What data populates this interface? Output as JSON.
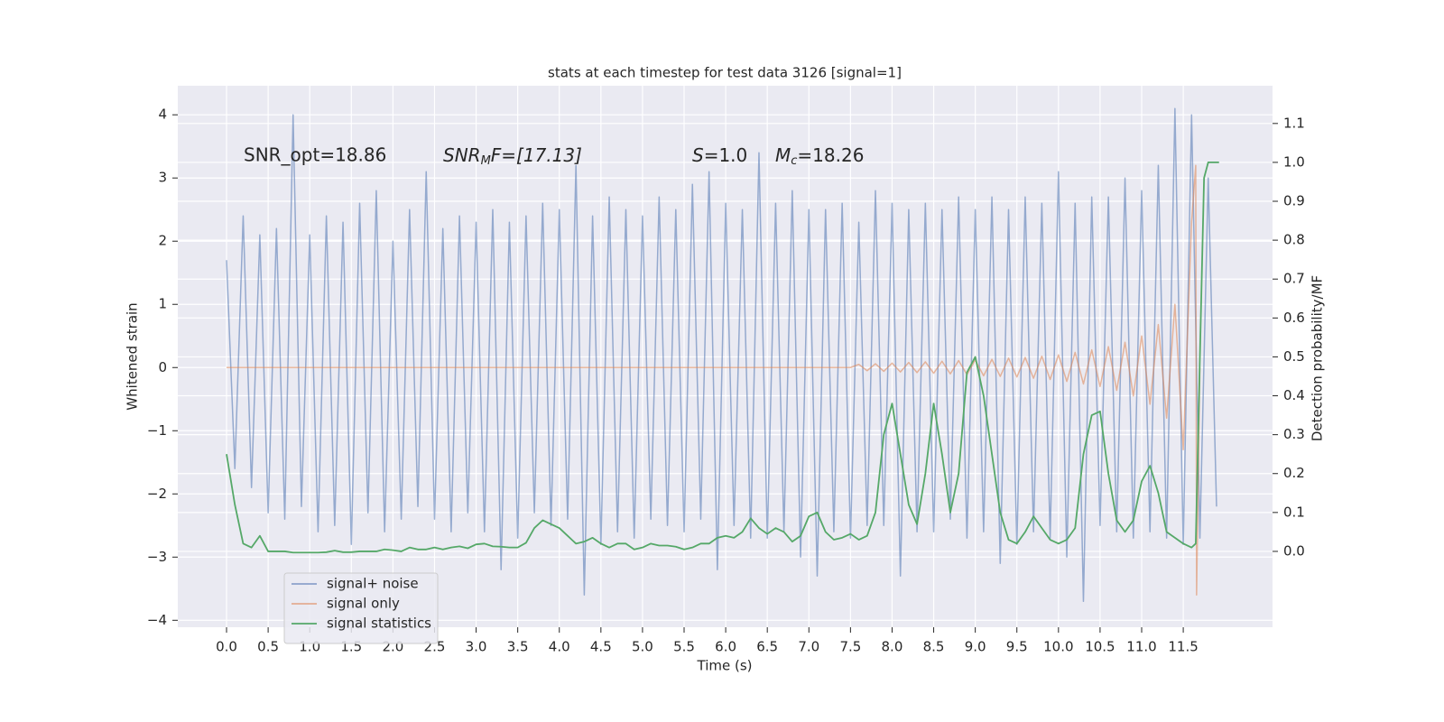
{
  "chart_data": {
    "type": "line",
    "title": "stats at each timestep for test data 3126 [signal=1]",
    "xlabel": "Time (s)",
    "ylabel": "Whitened strain",
    "y2label": "Detection probability/MF",
    "annotations": [
      [
        "SNR_opt=18.86"
      ],
      [
        "SNR",
        "M",
        "F=[17.13]"
      ],
      [
        "S",
        "=1.0"
      ],
      [
        "M",
        "c",
        "=18.26"
      ]
    ],
    "xlim": [
      -0.586,
      12.573
    ],
    "ylim": [
      -4.11,
      4.46
    ],
    "y2lim": [
      -0.195,
      1.197
    ],
    "xticks": [
      {
        "value": 0,
        "label": "0.0"
      },
      0.5,
      {
        "value": 1,
        "label": "1.0"
      },
      1.5,
      {
        "value": 2,
        "label": "2.0"
      },
      2.5,
      {
        "value": 3,
        "label": "3.0"
      },
      3.5,
      {
        "value": 4,
        "label": "4.0"
      },
      4.5,
      {
        "value": 5,
        "label": "5.0"
      },
      5.5,
      {
        "value": 6,
        "label": "6.0"
      },
      6.5,
      {
        "value": 7,
        "label": "7.0"
      },
      7.5,
      {
        "value": 8,
        "label": "8.0"
      },
      8.5,
      {
        "value": 9,
        "label": "9.0"
      },
      9.5,
      {
        "value": 10,
        "label": "10.0"
      },
      10.5,
      {
        "value": 11,
        "label": "11.0"
      },
      11.5
    ],
    "yticks": [
      {
        "value": -4,
        "label": "−4"
      },
      {
        "value": -3,
        "label": "−3"
      },
      {
        "value": -2,
        "label": "−2"
      },
      {
        "value": -1,
        "label": "−1"
      },
      0,
      1,
      2,
      3,
      4
    ],
    "y2ticks": [
      {
        "value": 0,
        "label": "0.0"
      },
      0.1,
      0.2,
      0.3,
      0.4,
      0.5,
      0.6,
      0.7,
      0.8,
      0.9,
      {
        "value": 1,
        "label": "1.0"
      },
      1.1
    ],
    "grid": true,
    "legend": "lower left",
    "series": [
      {
        "name": "signal+ noise",
        "color": "#4c72b0",
        "x": [
          0,
          0.1,
          0.2,
          0.3,
          0.4,
          0.5,
          0.6,
          0.7,
          0.8,
          0.9,
          1,
          1.1,
          1.2,
          1.3,
          1.4,
          1.5,
          1.6,
          1.7,
          1.8,
          1.9,
          2,
          2.1,
          2.2,
          2.3,
          2.4,
          2.5,
          2.6,
          2.7,
          2.8,
          2.9,
          3,
          3.1,
          3.2,
          3.3,
          3.4,
          3.5,
          3.6,
          3.7,
          3.8,
          3.9,
          4,
          4.1,
          4.2,
          4.3,
          4.4,
          4.5,
          4.6,
          4.7,
          4.8,
          4.9,
          5,
          5.1,
          5.2,
          5.3,
          5.4,
          5.5,
          5.6,
          5.7,
          5.8,
          5.9,
          6,
          6.1,
          6.2,
          6.3,
          6.4,
          6.5,
          6.6,
          6.7,
          6.8,
          6.9,
          7,
          7.1,
          7.2,
          7.3,
          7.4,
          7.5,
          7.6,
          7.7,
          7.8,
          7.9,
          8,
          8.1,
          8.2,
          8.3,
          8.4,
          8.5,
          8.6,
          8.7,
          8.8,
          8.9,
          9,
          9.1,
          9.2,
          9.3,
          9.4,
          9.5,
          9.6,
          9.7,
          9.8,
          9.9,
          10,
          10.1,
          10.2,
          10.3,
          10.4,
          10.5,
          10.6,
          10.7,
          10.8,
          10.9,
          11,
          11.1,
          11.2,
          11.3,
          11.4,
          11.5,
          11.6,
          11.7,
          11.8,
          11.9
        ],
        "values": [
          1.7,
          -1.6,
          2.4,
          -1.9,
          2.1,
          -2.3,
          2.2,
          -2.4,
          4.0,
          -2.2,
          2.1,
          -2.6,
          2.4,
          -2.5,
          2.3,
          -2.8,
          2.6,
          -2.3,
          2.8,
          -2.6,
          2.0,
          -2.4,
          2.5,
          -2.2,
          3.1,
          -2.4,
          2.2,
          -2.6,
          2.4,
          -2.3,
          2.3,
          -2.6,
          2.5,
          -3.2,
          2.3,
          -2.7,
          2.4,
          -2.3,
          2.6,
          -2.5,
          2.5,
          -2.4,
          3.2,
          -3.6,
          2.4,
          -2.8,
          2.7,
          -2.6,
          2.5,
          -2.7,
          2.4,
          -2.4,
          2.7,
          -2.5,
          2.5,
          -2.6,
          2.9,
          -2.4,
          3.1,
          -3.2,
          2.6,
          -2.5,
          2.5,
          -2.7,
          3.4,
          -2.7,
          2.6,
          -2.6,
          2.8,
          -3.0,
          2.5,
          -3.3,
          2.5,
          -2.6,
          2.6,
          -2.7,
          2.3,
          -2.5,
          2.8,
          -2.5,
          2.6,
          -3.3,
          2.5,
          -2.6,
          2.6,
          -2.6,
          2.5,
          -2.4,
          2.7,
          -2.7,
          2.5,
          -2.6,
          2.7,
          -3.1,
          2.5,
          -2.8,
          2.7,
          -2.6,
          2.6,
          -2.7,
          3.1,
          -3.0,
          2.6,
          -3.7,
          2.7,
          -2.5,
          2.7,
          -2.6,
          3.0,
          -2.7,
          2.8,
          -2.6,
          3.2,
          -2.7,
          4.1,
          -2.8,
          4.0,
          -2.7,
          3.0,
          -2.2
        ]
      },
      {
        "name": "signal only",
        "color": "#dd8452",
        "x": [
          0,
          7.5,
          7.6,
          7.7,
          7.8,
          7.9,
          8,
          8.1,
          8.2,
          8.3,
          8.4,
          8.5,
          8.6,
          8.7,
          8.8,
          8.9,
          9,
          9.1,
          9.2,
          9.3,
          9.4,
          9.5,
          9.6,
          9.7,
          9.8,
          9.9,
          10,
          10.1,
          10.2,
          10.3,
          10.4,
          10.5,
          10.6,
          10.7,
          10.8,
          10.9,
          11,
          11.1,
          11.2,
          11.3,
          11.4,
          11.5,
          11.6,
          11.65,
          11.66,
          11.7
        ],
        "values": [
          0,
          0,
          0.05,
          -0.05,
          0.06,
          -0.06,
          0.07,
          -0.07,
          0.08,
          -0.08,
          0.09,
          -0.09,
          0.1,
          -0.1,
          0.11,
          -0.11,
          0.12,
          -0.13,
          0.13,
          -0.14,
          0.15,
          -0.15,
          0.16,
          -0.17,
          0.18,
          -0.19,
          0.2,
          -0.22,
          0.24,
          -0.26,
          0.28,
          -0.3,
          0.33,
          -0.36,
          0.4,
          -0.45,
          0.5,
          -0.58,
          0.68,
          -0.8,
          1.0,
          -1.3,
          2.3,
          3.2,
          -3.6,
          0
        ]
      },
      {
        "name": "signal statistics",
        "color": "#55a868",
        "axis": "y2",
        "x": [
          0,
          0.1,
          0.2,
          0.3,
          0.4,
          0.5,
          0.6,
          0.7,
          0.8,
          0.9,
          1,
          1.1,
          1.2,
          1.3,
          1.4,
          1.5,
          1.6,
          1.7,
          1.8,
          1.9,
          2,
          2.1,
          2.2,
          2.3,
          2.4,
          2.5,
          2.6,
          2.7,
          2.8,
          2.9,
          3,
          3.1,
          3.2,
          3.3,
          3.4,
          3.5,
          3.6,
          3.7,
          3.8,
          3.9,
          4,
          4.1,
          4.2,
          4.3,
          4.4,
          4.5,
          4.6,
          4.7,
          4.8,
          4.9,
          5,
          5.1,
          5.2,
          5.3,
          5.4,
          5.5,
          5.6,
          5.7,
          5.8,
          5.9,
          6,
          6.1,
          6.2,
          6.3,
          6.4,
          6.5,
          6.6,
          6.7,
          6.8,
          6.9,
          7,
          7.1,
          7.2,
          7.3,
          7.4,
          7.5,
          7.6,
          7.7,
          7.8,
          7.9,
          8,
          8.1,
          8.2,
          8.3,
          8.4,
          8.5,
          8.6,
          8.7,
          8.8,
          8.9,
          9,
          9.1,
          9.2,
          9.3,
          9.4,
          9.5,
          9.6,
          9.7,
          9.8,
          9.9,
          10,
          10.1,
          10.2,
          10.3,
          10.4,
          10.5,
          10.6,
          10.7,
          10.8,
          10.9,
          11,
          11.1,
          11.2,
          11.3,
          11.4,
          11.5,
          11.6,
          11.65,
          11.7,
          11.75,
          11.8,
          11.93
        ],
        "values": [
          0.25,
          0.12,
          0.02,
          0.01,
          0.04,
          0.0,
          0.0,
          0.0,
          -0.003,
          -0.003,
          -0.003,
          -0.003,
          -0.002,
          0.002,
          -0.002,
          -0.002,
          0.0,
          0.0,
          0.0,
          0.005,
          0.003,
          0.0,
          0.01,
          0.005,
          0.005,
          0.01,
          0.005,
          0.01,
          0.013,
          0.008,
          0.018,
          0.02,
          0.013,
          0.012,
          0.01,
          0.01,
          0.022,
          0.06,
          0.08,
          0.07,
          0.06,
          0.04,
          0.02,
          0.025,
          0.035,
          0.02,
          0.01,
          0.02,
          0.02,
          0.005,
          0.01,
          0.02,
          0.015,
          0.015,
          0.012,
          0.005,
          0.01,
          0.02,
          0.02,
          0.035,
          0.04,
          0.035,
          0.05,
          0.085,
          0.06,
          0.045,
          0.06,
          0.05,
          0.025,
          0.04,
          0.09,
          0.1,
          0.05,
          0.03,
          0.035,
          0.045,
          0.03,
          0.04,
          0.1,
          0.3,
          0.38,
          0.25,
          0.12,
          0.07,
          0.2,
          0.38,
          0.25,
          0.1,
          0.2,
          0.46,
          0.5,
          0.4,
          0.25,
          0.1,
          0.03,
          0.02,
          0.05,
          0.09,
          0.06,
          0.03,
          0.02,
          0.03,
          0.06,
          0.25,
          0.35,
          0.36,
          0.2,
          0.08,
          0.05,
          0.08,
          0.18,
          0.22,
          0.15,
          0.05,
          0.035,
          0.02,
          0.01,
          0.02,
          0.5,
          0.96,
          1.0,
          1.0
        ]
      }
    ]
  }
}
